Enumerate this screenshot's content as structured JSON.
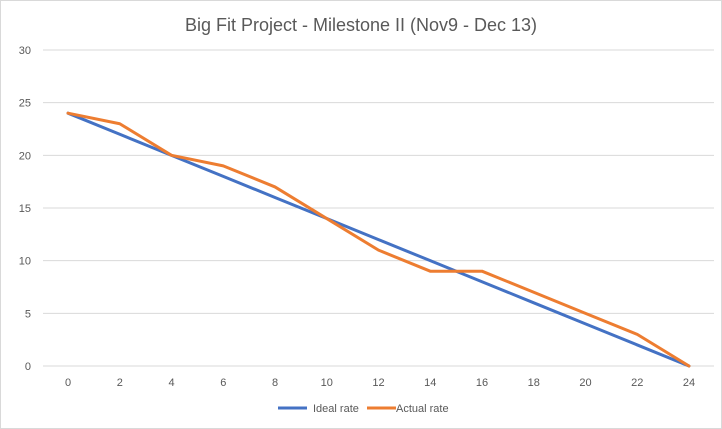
{
  "chart_data": {
    "type": "line",
    "title": "Big Fit Project - Milestone II (Nov9 - Dec 13)",
    "x": [
      0,
      2,
      4,
      6,
      8,
      10,
      12,
      14,
      16,
      18,
      20,
      22,
      24
    ],
    "series": [
      {
        "name": "Ideal rate",
        "color": "#4472c4",
        "values": [
          24,
          22,
          20,
          18,
          16,
          14,
          12,
          10,
          8,
          6,
          4,
          2,
          0
        ]
      },
      {
        "name": "Actual rate",
        "color": "#ed7d31",
        "values": [
          24,
          23,
          20,
          19,
          17,
          14,
          11,
          9,
          9,
          7,
          5,
          3,
          0
        ]
      }
    ],
    "ylim": [
      0,
      30
    ],
    "yticks": [
      0,
      5,
      10,
      15,
      20,
      25,
      30
    ],
    "grid": true,
    "legend": "bottom"
  }
}
